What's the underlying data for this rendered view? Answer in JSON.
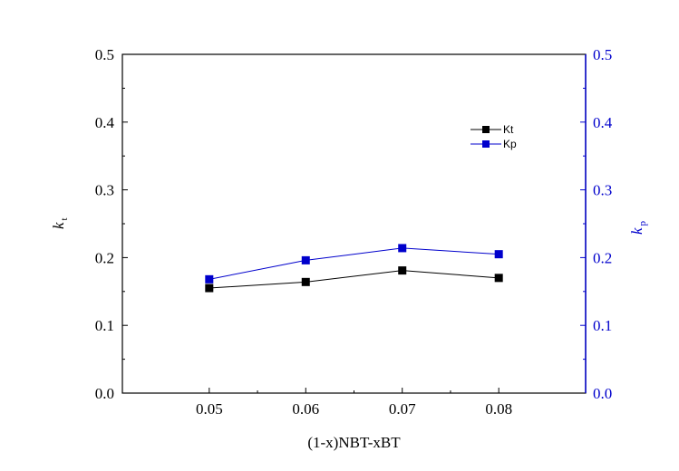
{
  "chart_data": {
    "type": "line",
    "xlabel": "(1-x)NBT-xBT",
    "ylabel_left": {
      "base": "k",
      "sub": "t"
    },
    "ylabel_right": {
      "base": "k",
      "sub": "p"
    },
    "xlim": [
      0.041,
      0.089
    ],
    "ylim_left": [
      0.0,
      0.5
    ],
    "ylim_right": [
      0.0,
      0.5
    ],
    "x_ticks": [
      "0.05",
      "0.06",
      "0.07",
      "0.08"
    ],
    "x_tick_values": [
      0.05,
      0.06,
      0.07,
      0.08
    ],
    "y_ticks": [
      "0.0",
      "0.1",
      "0.2",
      "0.3",
      "0.4",
      "0.5"
    ],
    "y_tick_values": [
      0.0,
      0.1,
      0.2,
      0.3,
      0.4,
      0.5
    ],
    "x": [
      0.05,
      0.06,
      0.07,
      0.08
    ],
    "series": [
      {
        "name": "Kt",
        "axis": "left",
        "color": "#000000",
        "values": [
          0.155,
          0.164,
          0.181,
          0.17
        ]
      },
      {
        "name": "Kp",
        "axis": "right",
        "color": "#0000cc",
        "values": [
          0.168,
          0.196,
          0.214,
          0.205
        ]
      }
    ],
    "legend_position": "top-right",
    "grid": false,
    "right_axis_color": "#0000cc"
  }
}
